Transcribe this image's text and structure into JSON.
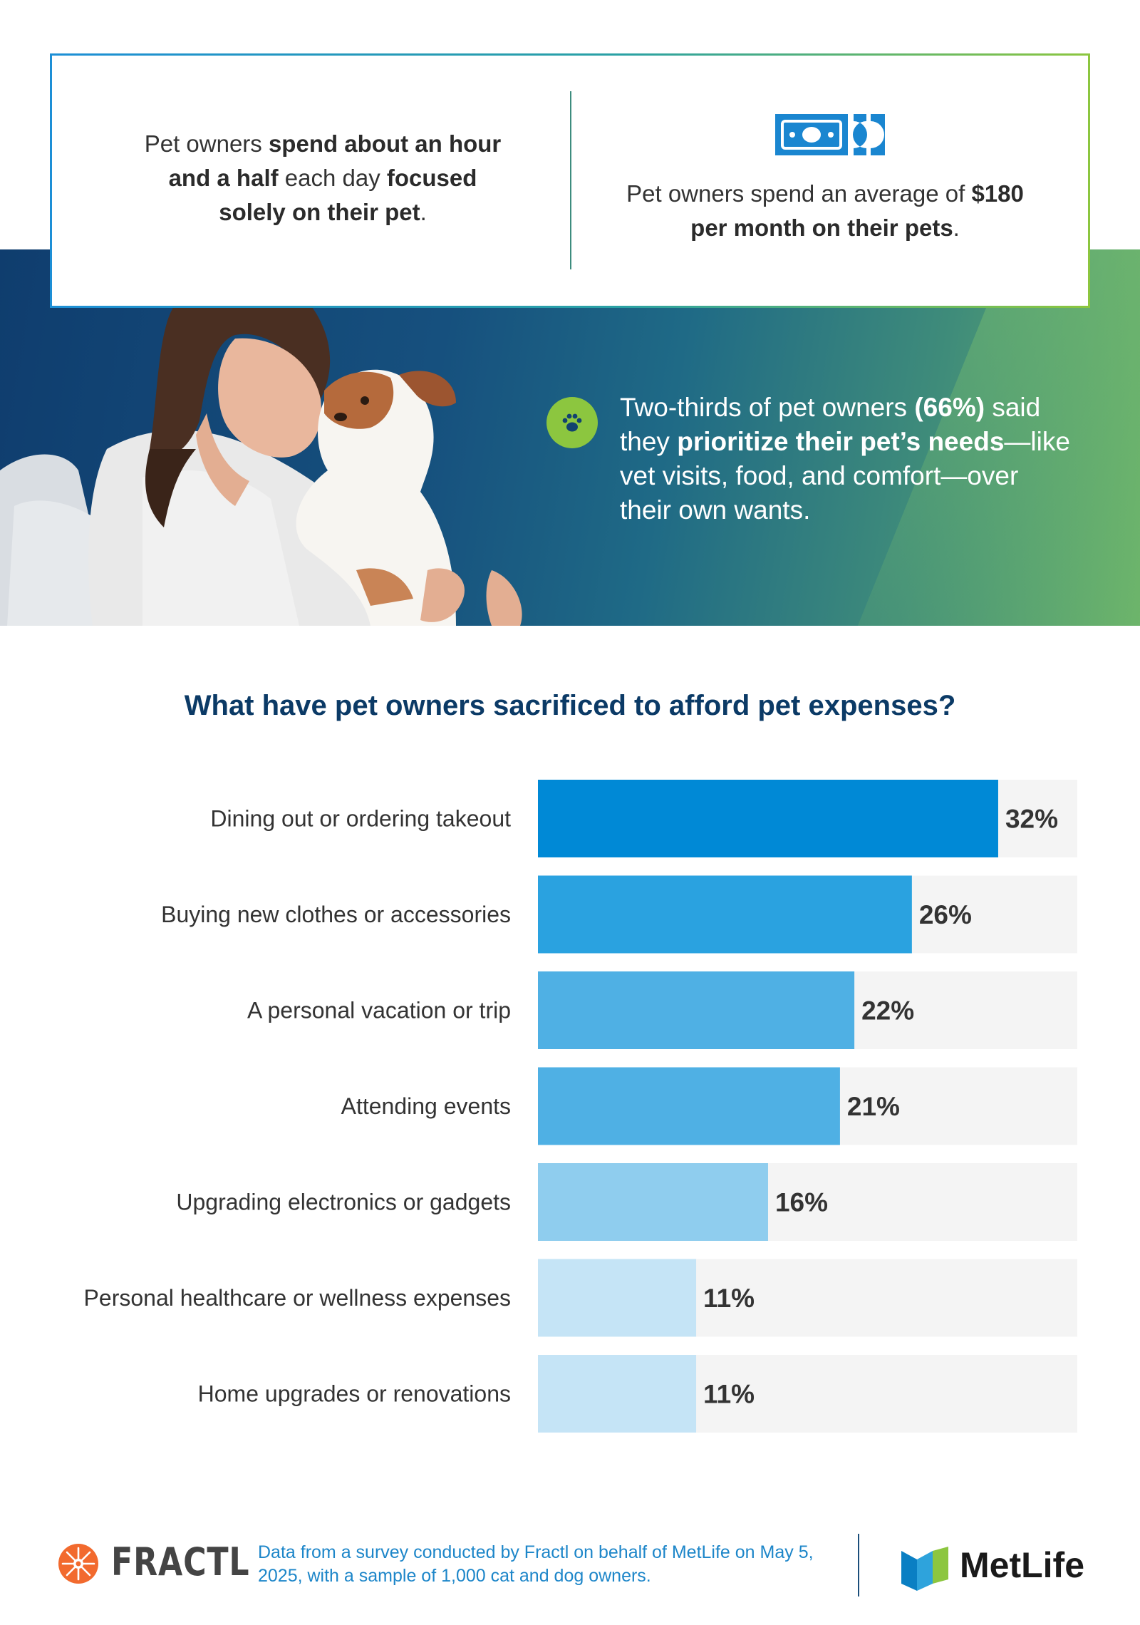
{
  "stats": {
    "left_parts": [
      {
        "text": "Pet owners ",
        "bold": false
      },
      {
        "text": "spend about an hour and a half",
        "bold": true
      },
      {
        "text": " each day ",
        "bold": false
      },
      {
        "text": "focused solely on their pet",
        "bold": true
      },
      {
        "text": ".",
        "bold": false
      }
    ],
    "right_parts": [
      {
        "text": "Pet owners spend an average of ",
        "bold": false
      },
      {
        "text": "$180 per month on their pets",
        "bold": true
      },
      {
        "text": ".",
        "bold": false
      }
    ],
    "money_icon": "money-bills-icon",
    "divider_color": "#3d8c7e"
  },
  "hero": {
    "parts": [
      {
        "text": "Two-thirds of pet owners ",
        "bold": false
      },
      {
        "text": "(66%)",
        "bold": true
      },
      {
        "text": " said they ",
        "bold": false
      },
      {
        "text": "prioritize their pet’s needs",
        "bold": true
      },
      {
        "text": "—like vet visits, food, and comfort—over their own wants.",
        "bold": false
      }
    ],
    "badge_icon": "paw-icon",
    "badge_color": "#8cc63f"
  },
  "chart_data": {
    "type": "bar",
    "orientation": "horizontal",
    "title": "What have pet owners sacrificed to afford pet expenses?",
    "categories": [
      "Dining out or ordering takeout",
      "Buying new clothes or accessories",
      "A personal vacation or trip",
      "Attending events",
      "Upgrading electronics or gadgets",
      "Personal healthcare or wellness expenses",
      "Home upgrades or renovations"
    ],
    "values": [
      32,
      26,
      22,
      21,
      16,
      11,
      11
    ],
    "value_labels": [
      "32%",
      "26%",
      "22%",
      "21%",
      "16%",
      "11%",
      "11%"
    ],
    "colors": [
      "#0089d6",
      "#2aa2e0",
      "#4fb0e4",
      "#4fb0e4",
      "#8fcdee",
      "#c5e4f6",
      "#c5e4f6"
    ],
    "track_color": "#f4f4f4",
    "xlim": [
      0,
      37.5
    ],
    "unit": "%",
    "grid": false,
    "legend": "none"
  },
  "footer": {
    "fractl_word": "FRACTL",
    "fractl_icon": "fractl-logo-icon",
    "note": "Data from a survey conducted by Fractl on behalf of MetLife on May 5, 2025, with a sample of 1,000 cat and dog owners.",
    "metlife_word": "MetLife",
    "metlife_icon": "metlife-logo-icon"
  }
}
